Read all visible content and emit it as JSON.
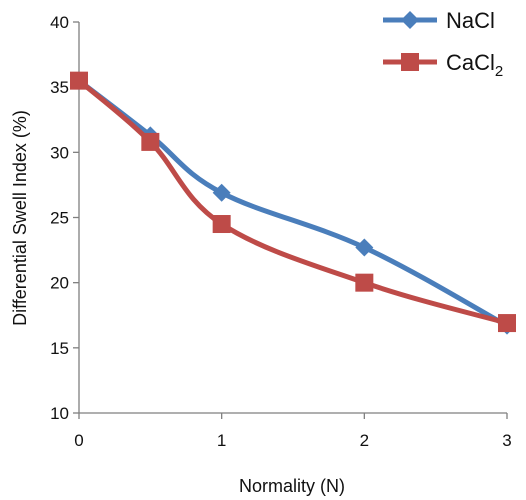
{
  "chart_data": {
    "type": "line",
    "xlabel": "Normality (N)",
    "ylabel": "Differential Swell Index (%)",
    "xlim": [
      0,
      3
    ],
    "ylim": [
      10,
      40
    ],
    "x_ticks": [
      "0",
      "1",
      "2",
      "3"
    ],
    "y_ticks": [
      "10",
      "15",
      "20",
      "25",
      "30",
      "35",
      "40"
    ],
    "grid": false,
    "legend_position": "top-right",
    "series": [
      {
        "name": "NaCl",
        "marker": "diamond",
        "color": "#4a7ebb",
        "x": [
          0,
          0.5,
          1,
          2,
          3
        ],
        "y": [
          35.5,
          31.3,
          26.9,
          22.7,
          16.7
        ]
      },
      {
        "name": "CaCl",
        "name_subscript": "2",
        "marker": "square",
        "color": "#be4b48",
        "x": [
          0,
          0.5,
          1,
          2,
          3
        ],
        "y": [
          35.5,
          30.8,
          24.5,
          20.0,
          16.9
        ]
      }
    ]
  }
}
